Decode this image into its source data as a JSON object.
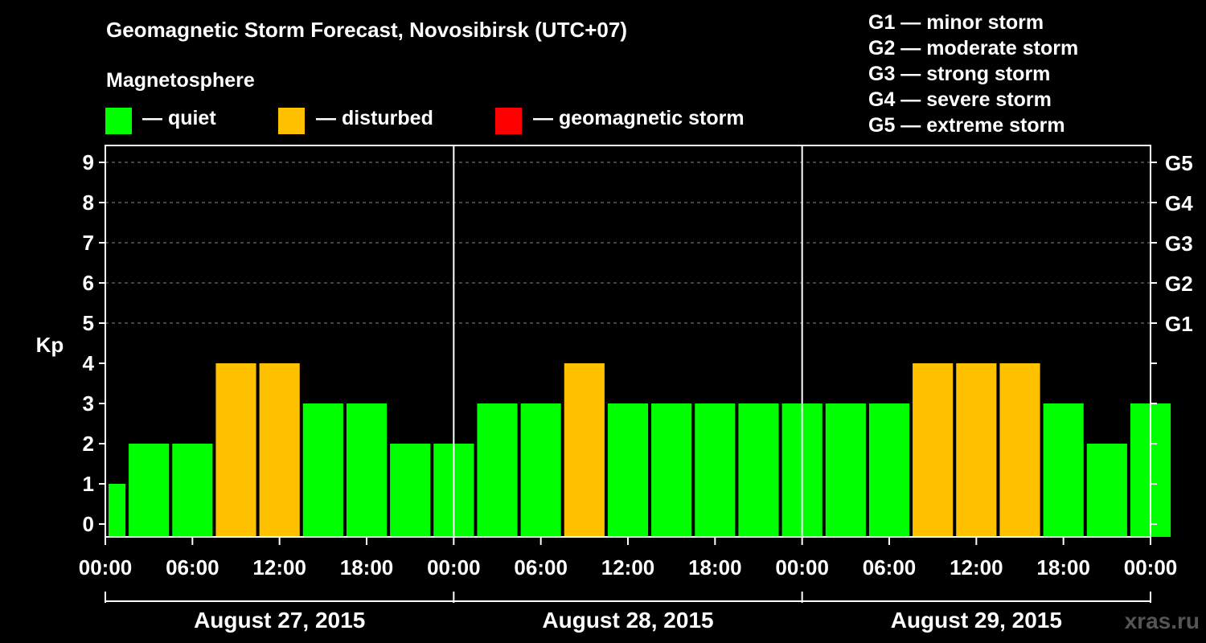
{
  "title": "Geomagnetic Storm Forecast, Novosibirsk (UTC+07)",
  "subtitle": "Magnetosphere",
  "legend": [
    {
      "label": "— quiet",
      "color": "#00ff00"
    },
    {
      "label": "— disturbed",
      "color": "#ffc000"
    },
    {
      "label": "— geomagnetic storm",
      "color": "#ff0000"
    }
  ],
  "g_legend": [
    "G1 — minor storm",
    "G2 — moderate storm",
    "G3 — strong storm",
    "G4 — severe storm",
    "G5 — extreme storm"
  ],
  "watermark": "xras.ru",
  "chart_data": {
    "type": "bar",
    "ylabel": "Kp",
    "ylim": [
      0,
      9
    ],
    "yticks": [
      0,
      1,
      2,
      3,
      4,
      5,
      6,
      7,
      8,
      9
    ],
    "right_labels": [
      {
        "value": 5,
        "label": "G1"
      },
      {
        "value": 6,
        "label": "G2"
      },
      {
        "value": 7,
        "label": "G3"
      },
      {
        "value": 8,
        "label": "G4"
      },
      {
        "value": 9,
        "label": "G5"
      }
    ],
    "x_tick_labels": [
      "00:00",
      "06:00",
      "12:00",
      "18:00",
      "00:00",
      "06:00",
      "12:00",
      "18:00",
      "00:00",
      "06:00",
      "12:00",
      "18:00",
      "00:00"
    ],
    "days": [
      "August 27, 2015",
      "August 28, 2015",
      "August 29, 2015"
    ],
    "grid": "dashed, values 5-9",
    "colors": {
      "quiet": "#00ff00",
      "disturbed": "#ffc000",
      "storm": "#ff0000"
    },
    "values": [
      1,
      2,
      2,
      4,
      4,
      3,
      3,
      2,
      2,
      3,
      3,
      4,
      3,
      3,
      3,
      3,
      3,
      3,
      3,
      4,
      4,
      4,
      3,
      2,
      3
    ],
    "status": [
      "quiet",
      "quiet",
      "quiet",
      "disturbed",
      "disturbed",
      "quiet",
      "quiet",
      "quiet",
      "quiet",
      "quiet",
      "quiet",
      "disturbed",
      "quiet",
      "quiet",
      "quiet",
      "quiet",
      "quiet",
      "quiet",
      "quiet",
      "disturbed",
      "disturbed",
      "disturbed",
      "quiet",
      "quiet",
      "quiet"
    ]
  }
}
